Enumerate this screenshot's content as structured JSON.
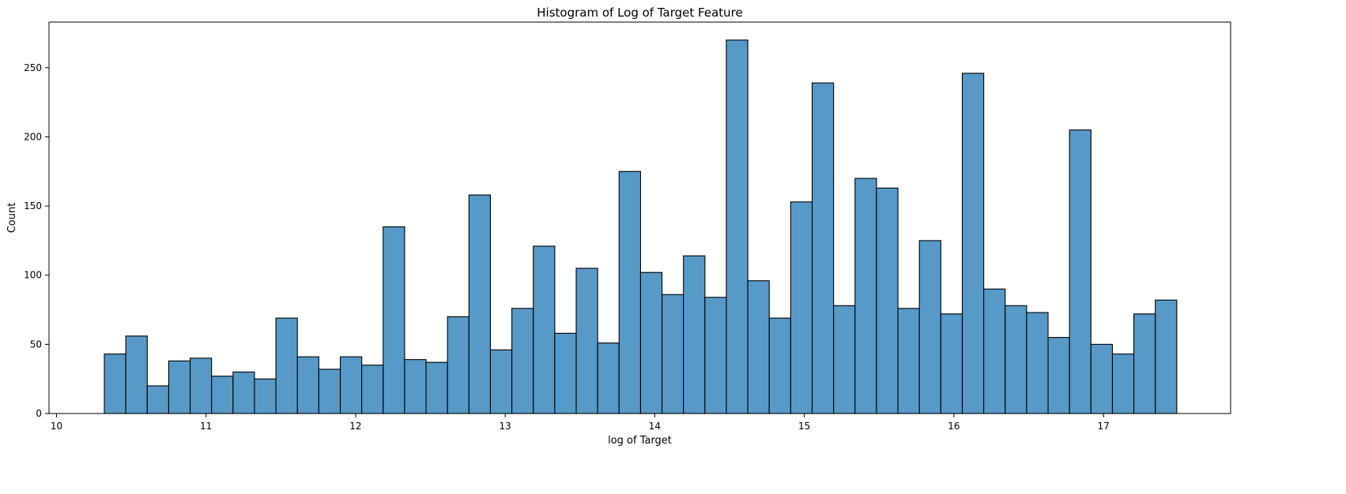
{
  "chart_data": {
    "type": "bar",
    "title": "Histogram of Log of Target Feature",
    "xlabel": "log of Target",
    "ylabel": "Count",
    "xlim": [
      9.95,
      17.85
    ],
    "ylim": [
      0,
      283
    ],
    "xticks": [
      10,
      11,
      12,
      13,
      14,
      15,
      16,
      17
    ],
    "yticks": [
      0,
      50,
      100,
      150,
      200,
      250
    ],
    "grid": false,
    "bar_color": "#5799C7",
    "edge_color": "#000000",
    "bins": {
      "start": 10.32,
      "width": 0.1434,
      "counts": [
        43,
        56,
        20,
        38,
        40,
        27,
        30,
        25,
        69,
        41,
        32,
        41,
        35,
        135,
        39,
        37,
        70,
        158,
        46,
        76,
        121,
        58,
        105,
        51,
        175,
        102,
        86,
        114,
        84,
        270,
        96,
        69,
        153,
        239,
        78,
        170,
        163,
        76,
        125,
        72,
        246,
        90,
        78,
        73,
        55,
        205,
        50,
        43,
        72,
        82
      ]
    }
  }
}
